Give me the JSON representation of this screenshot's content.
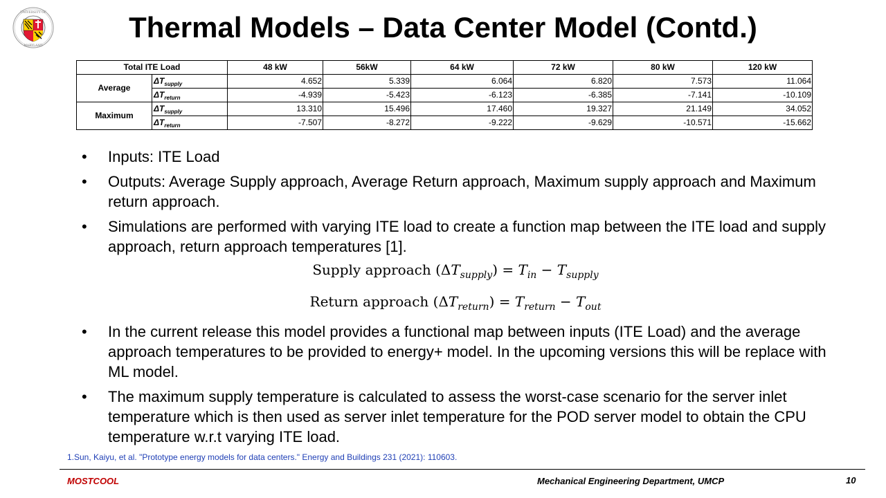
{
  "slide": {
    "title": "Thermal Models – Data Center Model (Contd.)",
    "logo_text": "UNIVERSITY OF MARYLAND"
  },
  "table": {
    "header_label": "Total ITE Load",
    "columns": [
      "48 kW",
      "56kW",
      "64 kW",
      "72 kW",
      "80 kW",
      "120 kW"
    ],
    "groups": [
      {
        "label": "Average",
        "rows": [
          {
            "sym": "ΔT",
            "sub": "supply",
            "values": [
              "4.652",
              "5.339",
              "6.064",
              "6.820",
              "7.573",
              "11.064"
            ]
          },
          {
            "sym": "ΔT",
            "sub": "return",
            "values": [
              "-4.939",
              "-5.423",
              "-6.123",
              "-6.385",
              "-7.141",
              "-10.109"
            ]
          }
        ]
      },
      {
        "label": "Maximum",
        "rows": [
          {
            "sym": "ΔT",
            "sub": "supply",
            "values": [
              "13.310",
              "15.496",
              "17.460",
              "19.327",
              "21.149",
              "34.052"
            ]
          },
          {
            "sym": "ΔT",
            "sub": "return",
            "values": [
              "-7.507",
              "-8.272",
              "-9.222",
              "-9.629",
              "-10.571",
              "-15.662"
            ]
          }
        ]
      }
    ]
  },
  "bullets": [
    "Inputs: ITE Load",
    "Outputs: Average Supply approach, Average Return approach, Maximum supply approach and Maximum return approach.",
    "Simulations are performed with varying ITE load to create a function map between the ITE load and supply approach, return approach temperatures [1].",
    "In the current release this model provides a functional map between inputs (ITE Load) and the average approach temperatures to be provided to energy+ model. In the upcoming versions this will be replace with ML model.",
    "The maximum supply temperature is calculated to assess the worst-case scenario for the server inlet temperature which is then used as server inlet temperature for the POD server model to obtain the CPU temperature w.r.t varying ITE load."
  ],
  "equations": {
    "supply": {
      "label": "Supply approach (Δ",
      "lhs_sub": "supply",
      "eq": ") = ",
      "t1_sub": "in",
      "minus": " − ",
      "t2_sub": "supply"
    },
    "return": {
      "label": "Return approach (Δ",
      "lhs_sub": "return",
      "eq": ") = ",
      "t1_sub": "return",
      "minus": " − ",
      "t2_sub": "out"
    }
  },
  "reference": "1.Sun, Kaiyu, et al. \"Prototype energy models for data centers.\" Energy and Buildings 231 (2021): 110603.",
  "footer": {
    "left": "MOSTCOOL",
    "center": "Mechanical Engineering Department, UMCP",
    "page": "10"
  },
  "colors": {
    "footer_left": "#c00000",
    "reference": "#1f3fb5"
  }
}
